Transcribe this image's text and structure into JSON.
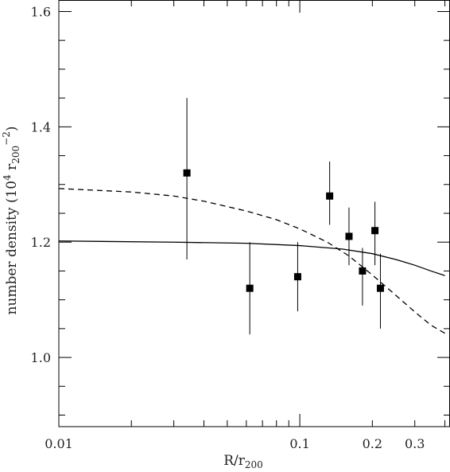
{
  "chart_data": {
    "type": "scatter",
    "x_scale": "log",
    "xlim": [
      0.01,
      0.42
    ],
    "ylim": [
      0.88,
      1.62
    ],
    "x_ticks": [
      {
        "value": 0.01,
        "label": "0.01"
      },
      {
        "value": 0.1,
        "label": "0.1"
      },
      {
        "value": 0.2,
        "label": "0.2"
      },
      {
        "value": 0.3,
        "label": "0.3"
      }
    ],
    "y_ticks": [
      {
        "value": 1.0,
        "label": "1.0"
      },
      {
        "value": 1.2,
        "label": "1.2"
      },
      {
        "value": 1.4,
        "label": "1.4"
      },
      {
        "value": 1.6,
        "label": "1.6"
      }
    ],
    "xlabel": {
      "main": "R/r",
      "sub": "200"
    },
    "ylabel": {
      "pre": "number density (10",
      "sup1": "4",
      "mid": " r",
      "sub": "200",
      "sup2": "−2",
      "post": ")"
    },
    "points": [
      {
        "x": 0.034,
        "y": 1.32,
        "ylo": 1.17,
        "yhi": 1.45
      },
      {
        "x": 0.062,
        "y": 1.12,
        "ylo": 1.04,
        "yhi": 1.2
      },
      {
        "x": 0.098,
        "y": 1.14,
        "ylo": 1.08,
        "yhi": 1.2
      },
      {
        "x": 0.133,
        "y": 1.28,
        "ylo": 1.23,
        "yhi": 1.34
      },
      {
        "x": 0.16,
        "y": 1.21,
        "ylo": 1.16,
        "yhi": 1.26
      },
      {
        "x": 0.182,
        "y": 1.15,
        "ylo": 1.09,
        "yhi": 1.19
      },
      {
        "x": 0.205,
        "y": 1.22,
        "ylo": 1.16,
        "yhi": 1.27
      },
      {
        "x": 0.216,
        "y": 1.12,
        "ylo": 1.05,
        "yhi": 1.18
      }
    ],
    "curves": [
      {
        "style": "solid",
        "x": [
          0.01,
          0.03,
          0.06,
          0.1,
          0.15,
          0.2,
          0.25,
          0.3,
          0.35,
          0.4
        ],
        "y": [
          1.202,
          1.2,
          1.198,
          1.194,
          1.188,
          1.18,
          1.17,
          1.16,
          1.15,
          1.142
        ]
      },
      {
        "style": "dashed",
        "x": [
          0.01,
          0.02,
          0.03,
          0.04,
          0.06,
          0.08,
          0.1,
          0.13,
          0.16,
          0.2,
          0.25,
          0.3,
          0.35,
          0.4
        ],
        "y": [
          1.293,
          1.287,
          1.28,
          1.271,
          1.254,
          1.239,
          1.223,
          1.2,
          1.176,
          1.143,
          1.108,
          1.079,
          1.056,
          1.042
        ]
      }
    ]
  }
}
